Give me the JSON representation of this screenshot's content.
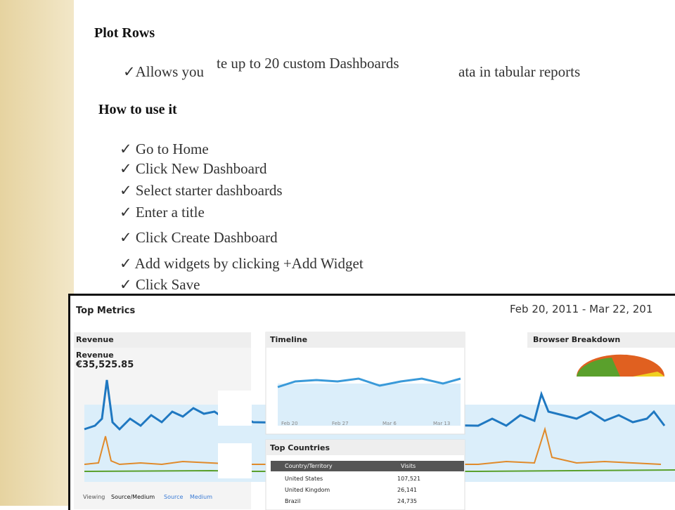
{
  "slide": {
    "heading1": "Plot Rows",
    "overlap_text": [
      "✓Allows you",
      "te up to 20 custom Dashboards",
      "ata in tabular reports"
    ],
    "heading2": "How to use it",
    "steps": [
      "✓ Go to Home",
      "✓ Click New Dashboard",
      "✓ Select starter dashboards",
      "✓ Enter a title",
      "✓ Click Create Dashboard",
      "✓ Add widgets by clicking +Add Widget",
      "✓ Click Save"
    ]
  },
  "dashboard": {
    "title": "Top Metrics",
    "date_range": "Feb 20, 2011 - Mar 22, 201",
    "widgets": [
      {
        "title": "Revenue",
        "metric": "Revenue",
        "amount": "€35,525.85"
      },
      {
        "title": "Timeline"
      },
      {
        "title": "Browser Breakdown"
      },
      {
        "title": "Top Countries"
      }
    ],
    "timeline_axis": [
      "Feb 20",
      "Feb 27",
      "Mar 6",
      "Mar 13"
    ],
    "table": {
      "header": [
        "Country/Territory",
        "Visits"
      ],
      "rows": [
        [
          "United States",
          "107,521"
        ],
        [
          "United Kingdom",
          "26,141"
        ],
        [
          "Brazil",
          "24,735"
        ]
      ]
    },
    "tabs": [
      "Viewing",
      "Source/Medium",
      "Source",
      "Medium"
    ]
  }
}
